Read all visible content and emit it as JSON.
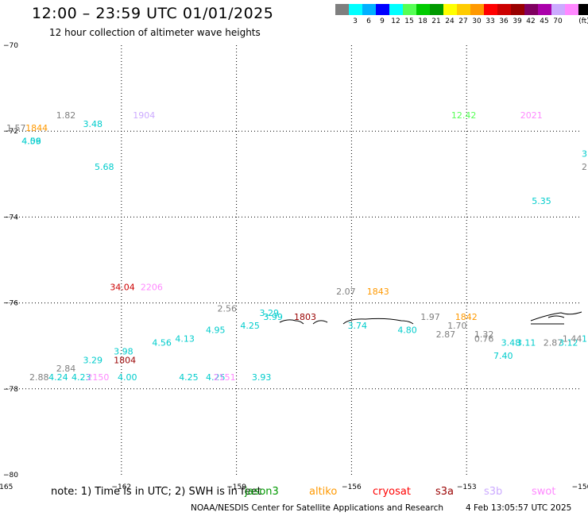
{
  "header": {
    "title": "12:00 – 23:59 UTC 01/01/2025",
    "subtitle": "12 hour collection of altimeter wave heights"
  },
  "color_scale": {
    "unit": "(ft)",
    "colors": [
      "#7f7f7f",
      "#00ffff",
      "#00b0ff",
      "#0000ff",
      "#00ffff",
      "#55ff55",
      "#00cc00",
      "#009900",
      "#ffff00",
      "#ffcc00",
      "#ff9900",
      "#ff0000",
      "#cc0000",
      "#990000",
      "#800060",
      "#aa00aa",
      "#ccaaff",
      "#ff88ff",
      "#000000"
    ],
    "labels": [
      "3",
      "6",
      "9",
      "12",
      "15",
      "18",
      "21",
      "24",
      "27",
      "30",
      "33",
      "36",
      "39",
      "42",
      "45",
      "70"
    ]
  },
  "chart_data": {
    "type": "scatter",
    "title": "12:00 – 23:59 UTC 01/01/2025",
    "subtitle": "12 hour collection of altimeter wave heights",
    "x_ticks": [
      "-165",
      "-162",
      "-159",
      "-156",
      "-153",
      "-150"
    ],
    "y_ticks": [
      "-70",
      "-72",
      "-74",
      "-76",
      "-78",
      "-80"
    ],
    "xlim": [
      -165,
      -150
    ],
    "ylim": [
      -80,
      -70
    ],
    "grid": true,
    "points": [
      {
        "lon": -163.7,
        "lat": -71.7,
        "label": "1.82",
        "color": "#7f7f7f"
      },
      {
        "lon": -161.7,
        "lat": -71.7,
        "label": "1904",
        "color": "#ccaaff"
      },
      {
        "lon": -153.4,
        "lat": -71.7,
        "label": "12.42",
        "color": "#55ff55"
      },
      {
        "lon": -151.6,
        "lat": -71.7,
        "label": "2021",
        "color": "#ff88ff"
      },
      {
        "lon": -165.0,
        "lat": -72.0,
        "label": "1.57",
        "color": "#7f7f7f"
      },
      {
        "lon": -164.5,
        "lat": -72.0,
        "label": "1844",
        "color": "#ff9900"
      },
      {
        "lon": -163.0,
        "lat": -71.9,
        "label": "3.48",
        "color": "#00cccc"
      },
      {
        "lon": -164.6,
        "lat": -72.3,
        "label": "4.09",
        "color": "#00cccc"
      },
      {
        "lon": -164.6,
        "lat": -72.3,
        "label": "4.56",
        "color": "#00cccc"
      },
      {
        "lon": -162.7,
        "lat": -72.9,
        "label": "5.68",
        "color": "#00cccc"
      },
      {
        "lon": -150.0,
        "lat": -72.6,
        "label": "3.",
        "color": "#00cccc"
      },
      {
        "lon": -150.0,
        "lat": -72.9,
        "label": "2.0",
        "color": "#7f7f7f"
      },
      {
        "lon": -151.3,
        "lat": -73.7,
        "label": "5.35",
        "color": "#00cccc"
      },
      {
        "lon": -162.3,
        "lat": -75.7,
        "label": "34.04",
        "color": "#cc0000"
      },
      {
        "lon": -161.5,
        "lat": -75.7,
        "label": "2206",
        "color": "#ff88ff"
      },
      {
        "lon": -156.4,
        "lat": -75.8,
        "label": "2.07",
        "color": "#7f7f7f"
      },
      {
        "lon": -155.6,
        "lat": -75.8,
        "label": "1843",
        "color": "#ff9900"
      },
      {
        "lon": -159.5,
        "lat": -76.2,
        "label": "2.56",
        "color": "#7f7f7f"
      },
      {
        "lon": -158.4,
        "lat": -76.3,
        "label": "3.29",
        "color": "#00cccc"
      },
      {
        "lon": -158.3,
        "lat": -76.4,
        "label": "3.99",
        "color": "#00cccc"
      },
      {
        "lon": -157.5,
        "lat": -76.4,
        "label": "1803",
        "color": "#990000"
      },
      {
        "lon": -158.9,
        "lat": -76.6,
        "label": "4.25",
        "color": "#00cccc"
      },
      {
        "lon": -156.1,
        "lat": -76.6,
        "label": "3.74",
        "color": "#00cccc"
      },
      {
        "lon": -154.2,
        "lat": -76.4,
        "label": "1.97",
        "color": "#7f7f7f"
      },
      {
        "lon": -153.3,
        "lat": -76.4,
        "label": "1842",
        "color": "#ff9900"
      },
      {
        "lon": -153.5,
        "lat": -76.6,
        "label": "1.70",
        "color": "#7f7f7f"
      },
      {
        "lon": -154.8,
        "lat": -76.7,
        "label": "4.80",
        "color": "#00cccc"
      },
      {
        "lon": -153.8,
        "lat": -76.8,
        "label": "2.87",
        "color": "#7f7f7f"
      },
      {
        "lon": -159.8,
        "lat": -76.7,
        "label": "4.95",
        "color": "#00cccc"
      },
      {
        "lon": -160.6,
        "lat": -76.9,
        "label": "4.13",
        "color": "#00cccc"
      },
      {
        "lon": -161.2,
        "lat": -77.0,
        "label": "4.56",
        "color": "#00cccc"
      },
      {
        "lon": -152.8,
        "lat": -76.8,
        "label": "1.32",
        "color": "#7f7f7f"
      },
      {
        "lon": -152.8,
        "lat": -76.9,
        "label": "0.76",
        "color": "#7f7f7f"
      },
      {
        "lon": -152.1,
        "lat": -77.0,
        "label": "3.48",
        "color": "#00cccc"
      },
      {
        "lon": -151.7,
        "lat": -77.0,
        "label": "3.11",
        "color": "#00cccc"
      },
      {
        "lon": -151.0,
        "lat": -77.0,
        "label": "2.87",
        "color": "#7f7f7f"
      },
      {
        "lon": -150.6,
        "lat": -77.0,
        "label": "3.12",
        "color": "#00cccc"
      },
      {
        "lon": -150.5,
        "lat": -76.9,
        "label": "1.44",
        "color": "#7f7f7f"
      },
      {
        "lon": -150.0,
        "lat": -76.9,
        "label": "1",
        "color": "#00cccc"
      },
      {
        "lon": -152.3,
        "lat": -77.3,
        "label": "7.40",
        "color": "#00cccc"
      },
      {
        "lon": -162.2,
        "lat": -77.2,
        "label": "3.98",
        "color": "#00cccc"
      },
      {
        "lon": -162.2,
        "lat": -77.4,
        "label": "1804",
        "color": "#990000"
      },
      {
        "lon": -163.0,
        "lat": -77.4,
        "label": "3.29",
        "color": "#00cccc"
      },
      {
        "lon": -163.7,
        "lat": -77.6,
        "label": "2.84",
        "color": "#7f7f7f"
      },
      {
        "lon": -164.4,
        "lat": -77.8,
        "label": "2.88",
        "color": "#7f7f7f"
      },
      {
        "lon": -163.9,
        "lat": -77.8,
        "label": "4.24",
        "color": "#00cccc"
      },
      {
        "lon": -163.3,
        "lat": -77.8,
        "label": "4.23",
        "color": "#00cccc"
      },
      {
        "lon": -162.9,
        "lat": -77.8,
        "label": "2150",
        "color": "#ff88ff"
      },
      {
        "lon": -162.1,
        "lat": -77.8,
        "label": "4.00",
        "color": "#00cccc"
      },
      {
        "lon": -160.5,
        "lat": -77.8,
        "label": "4.25",
        "color": "#00cccc"
      },
      {
        "lon": -159.8,
        "lat": -77.8,
        "label": "4.25",
        "color": "#00cccc"
      },
      {
        "lon": -159.6,
        "lat": -77.8,
        "label": "2151",
        "color": "#ff88ff"
      },
      {
        "lon": -158.6,
        "lat": -77.8,
        "label": "3.93",
        "color": "#00cccc"
      }
    ]
  },
  "legend": {
    "note": "note: 1) Time is in UTC; 2) SWH is in feet",
    "items": [
      {
        "label": "jason3",
        "color": "#009900"
      },
      {
        "label": "altiko",
        "color": "#ff9900"
      },
      {
        "label": "cryosat",
        "color": "#ff0000"
      },
      {
        "label": "s3a",
        "color": "#990000"
      },
      {
        "label": "s3b",
        "color": "#ccaaff"
      },
      {
        "label": "swot",
        "color": "#ff88ff"
      }
    ]
  },
  "footer": {
    "credit": "NOAA/NESDIS Center for Satellite Applications and Research",
    "timestamp": "4 Feb 13:05:57 UTC 2025"
  }
}
